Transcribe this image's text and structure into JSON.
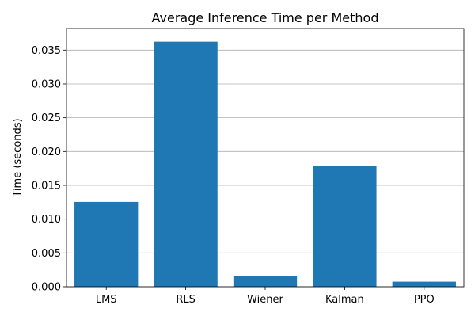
{
  "chart_data": {
    "type": "bar",
    "title": "Average Inference Time per Method",
    "xlabel": "",
    "ylabel": "Time (seconds)",
    "categories": [
      "LMS",
      "RLS",
      "Wiener",
      "Kalman",
      "PPO"
    ],
    "values": [
      0.01255,
      0.03625,
      0.00155,
      0.01785,
      0.00075
    ],
    "ylim": [
      0,
      0.0382
    ],
    "yticks": [
      "0.000",
      "0.005",
      "0.010",
      "0.015",
      "0.020",
      "0.025",
      "0.030",
      "0.035"
    ],
    "ytick_values": [
      0,
      0.005,
      0.01,
      0.015,
      0.02,
      0.025,
      0.03,
      0.035
    ],
    "grid": "y-major",
    "bar_color": "#1f77b4",
    "grid_color": "#b0b0b0"
  }
}
